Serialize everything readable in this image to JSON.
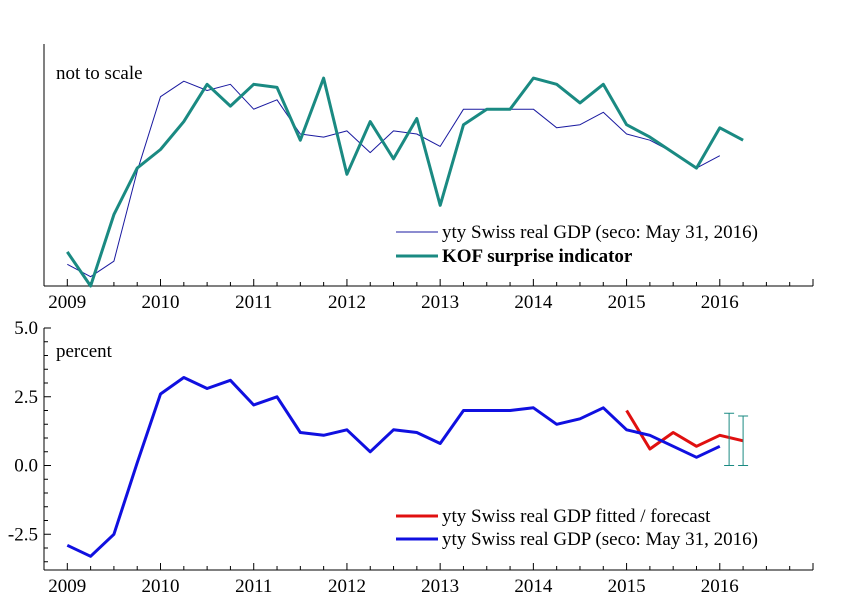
{
  "chart_data": [
    {
      "type": "line",
      "annotation": "not to scale",
      "x_ticks": [
        "2009",
        "2010",
        "2011",
        "2012",
        "2013",
        "2014",
        "2015",
        "2016"
      ],
      "y_ticks": [],
      "xlim": [
        2008.75,
        2017.0
      ],
      "ylim": [
        -3.6,
        4.2
      ],
      "series": [
        {
          "name": "yty Swiss real GDP (seco: May 31, 2016)",
          "color": "#1a1aa0",
          "x": [
            2009.0,
            2009.25,
            2009.5,
            2009.75,
            2010.0,
            2010.25,
            2010.5,
            2010.75,
            2011.0,
            2011.25,
            2011.5,
            2011.75,
            2012.0,
            2012.25,
            2012.5,
            2012.75,
            2013.0,
            2013.25,
            2013.5,
            2013.75,
            2014.0,
            2014.25,
            2014.5,
            2014.75,
            2015.0,
            2015.25,
            2015.5,
            2015.75,
            2016.0
          ],
          "y": [
            -2.9,
            -3.3,
            -2.8,
            0.1,
            2.5,
            3.0,
            2.7,
            2.9,
            2.1,
            2.4,
            1.3,
            1.2,
            1.4,
            0.7,
            1.4,
            1.3,
            0.9,
            2.1,
            2.1,
            2.1,
            2.1,
            1.5,
            1.6,
            2.0,
            1.3,
            1.1,
            0.7,
            0.2,
            0.6
          ]
        },
        {
          "name": "KOF surprise indicator",
          "color": "#1a8a82",
          "x": [
            2009.0,
            2009.25,
            2009.5,
            2009.75,
            2010.0,
            2010.25,
            2010.5,
            2010.75,
            2011.0,
            2011.25,
            2011.5,
            2011.75,
            2012.0,
            2012.25,
            2012.5,
            2012.75,
            2013.0,
            2013.25,
            2013.5,
            2013.75,
            2014.0,
            2014.25,
            2014.5,
            2014.75,
            2015.0,
            2015.25,
            2015.5,
            2015.75,
            2016.0,
            2016.25
          ],
          "y": [
            -2.5,
            -3.6,
            -1.3,
            0.2,
            0.8,
            1.7,
            2.9,
            2.2,
            2.9,
            2.8,
            1.1,
            3.1,
            0.0,
            1.7,
            0.5,
            1.8,
            -1.0,
            1.6,
            2.1,
            2.1,
            3.1,
            2.9,
            2.3,
            2.9,
            1.6,
            1.2,
            0.7,
            0.2,
            1.5,
            1.1
          ]
        }
      ]
    },
    {
      "type": "line",
      "annotation": "percent",
      "x_ticks": [
        "2009",
        "2010",
        "2011",
        "2012",
        "2013",
        "2014",
        "2015",
        "2016"
      ],
      "y_ticks": [
        "5.0",
        "2.5",
        "0.0",
        "-2.5"
      ],
      "xlim": [
        2008.75,
        2017.0
      ],
      "ylim": [
        -3.8,
        5.0
      ],
      "series": [
        {
          "name": "yty Swiss real GDP fitted / forecast",
          "color": "#e01010",
          "x": [
            2015.0,
            2015.25,
            2015.5,
            2015.75,
            2016.0,
            2016.25
          ],
          "y": [
            2.0,
            0.6,
            1.2,
            0.7,
            1.1,
            0.9
          ]
        },
        {
          "name": "yty Swiss real GDP (seco: May 31, 2016)",
          "color": "#1010e0",
          "x": [
            2009.0,
            2009.25,
            2009.5,
            2009.75,
            2010.0,
            2010.25,
            2010.5,
            2010.75,
            2011.0,
            2011.25,
            2011.5,
            2011.75,
            2012.0,
            2012.25,
            2012.5,
            2012.75,
            2013.0,
            2013.25,
            2013.5,
            2013.75,
            2014.0,
            2014.25,
            2014.5,
            2014.75,
            2015.0,
            2015.25,
            2015.5,
            2015.75,
            2016.0
          ],
          "y": [
            -2.9,
            -3.3,
            -2.5,
            0.1,
            2.6,
            3.2,
            2.8,
            3.1,
            2.2,
            2.5,
            1.2,
            1.1,
            1.3,
            0.5,
            1.3,
            1.2,
            0.8,
            2.0,
            2.0,
            2.0,
            2.1,
            1.5,
            1.7,
            2.1,
            1.3,
            1.1,
            0.7,
            0.3,
            0.7
          ]
        }
      ],
      "error_bars": [
        {
          "x": 2016.1,
          "low": 0.0,
          "high": 1.9,
          "color": "#1a8a82"
        },
        {
          "x": 2016.25,
          "low": 0.0,
          "high": 1.8,
          "color": "#1a8a82"
        }
      ]
    }
  ]
}
